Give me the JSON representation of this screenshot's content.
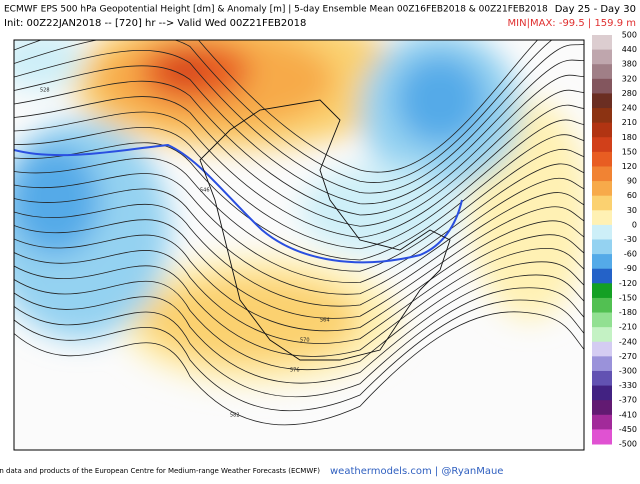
{
  "header": {
    "title": "ECMWF EPS 500 hPa Geopotential Height [dm] & Anomaly [m] | 5-day Ensemble Mean 00Z16FEB2018 & 00Z21FEB2018",
    "subtitle": "Init: 00Z22JAN2018 -- [720] hr --> Valid Wed 00Z21FEB2018",
    "period": "Day 25 - Day 30",
    "minmax": "MIN|MAX: -99.5 | 159.9 m"
  },
  "colorbar": {
    "labels": [
      500,
      440,
      380,
      320,
      280,
      240,
      210,
      180,
      150,
      120,
      90,
      60,
      30,
      0,
      -30,
      -60,
      -90,
      -120,
      -150,
      -180,
      -210,
      -240,
      -270,
      -300,
      -330,
      -370,
      -410,
      -450,
      -500
    ],
    "colors": [
      "#dccdd0",
      "#bfa6ad",
      "#a07f87",
      "#83565e",
      "#6b2e22",
      "#8c3312",
      "#b13412",
      "#d1401a",
      "#e85d22",
      "#f18333",
      "#f7aa4a",
      "#fbd170",
      "#fff1b4",
      "#cdeff8",
      "#94d2f1",
      "#54aae8",
      "#2462c8",
      "#14a024",
      "#52c052",
      "#92e092",
      "#c4f2c4",
      "#d4ccf2",
      "#9a92da",
      "#6252b2",
      "#422282",
      "#621a72",
      "#a22a9a",
      "#e052d2"
    ]
  },
  "contour_labels": [
    "528",
    "546",
    "570",
    "576",
    "582",
    "564"
  ],
  "footer": {
    "credit": "This service is based on data and products of the European Centre for Medium-range Weather Forecasts (ECMWF)",
    "site": "weathermodels.com | @RyanMaue"
  }
}
